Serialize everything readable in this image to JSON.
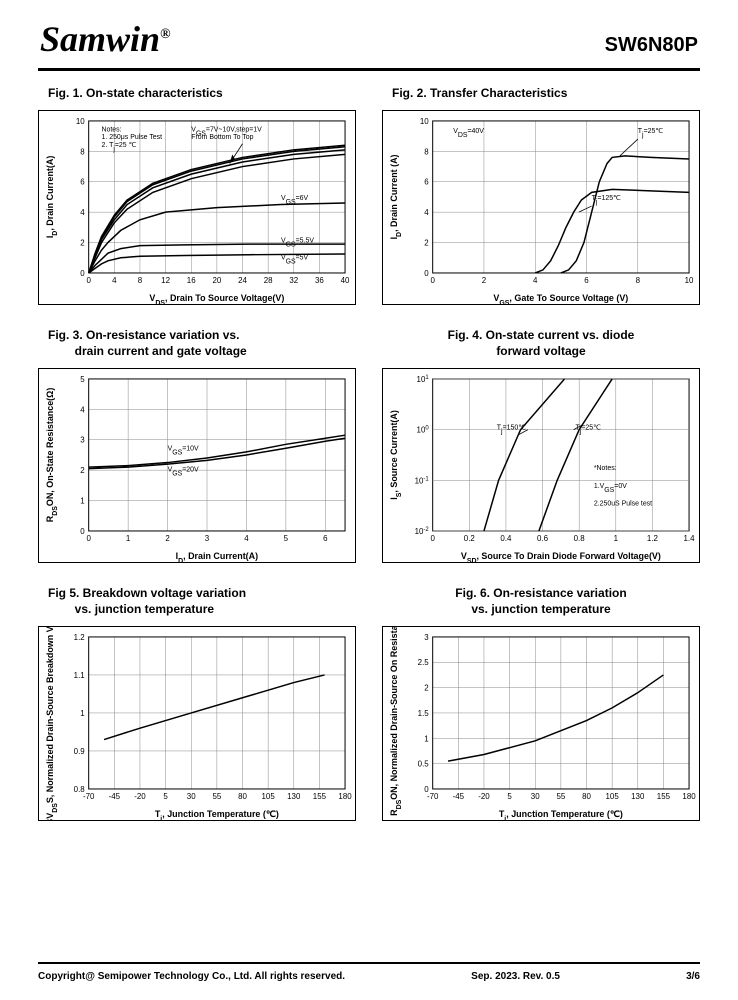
{
  "header": {
    "logo": "Samwin",
    "reg": "®",
    "partno": "SW6N80P"
  },
  "fig1": {
    "title": "Fig. 1. On-state characteristics",
    "xlabel": "V_DS, Drain To Source Voltage(V)",
    "ylabel": "I_D, Drain Current(A)",
    "xlim": [
      0,
      40
    ],
    "xtick": [
      0,
      4,
      8,
      12,
      16,
      20,
      24,
      28,
      32,
      36,
      40
    ],
    "ylim": [
      0,
      10
    ],
    "ytick": [
      0,
      2,
      4,
      6,
      8,
      10
    ],
    "notes": [
      "Notes:",
      "1. 250μs Pulse Test",
      "2. T_j=25 ℃"
    ],
    "topnote": [
      "V_GS=7V~10V,step=1V",
      "From Bottom To Top"
    ],
    "curves": [
      {
        "label": "V_GS=5V",
        "label_x": 30,
        "label_y": 0.9,
        "pts": [
          [
            0,
            0
          ],
          [
            1,
            0.3
          ],
          [
            2,
            0.6
          ],
          [
            3,
            0.8
          ],
          [
            5,
            1.0
          ],
          [
            8,
            1.1
          ],
          [
            15,
            1.15
          ],
          [
            25,
            1.2
          ],
          [
            40,
            1.25
          ]
        ]
      },
      {
        "label": "V_GS=5.5V",
        "label_x": 30,
        "label_y": 2.0,
        "pts": [
          [
            0,
            0
          ],
          [
            1,
            0.5
          ],
          [
            2,
            0.9
          ],
          [
            3,
            1.3
          ],
          [
            5,
            1.6
          ],
          [
            8,
            1.8
          ],
          [
            15,
            1.85
          ],
          [
            25,
            1.9
          ],
          [
            40,
            1.9
          ]
        ]
      },
      {
        "label": "V_GS=6V",
        "label_x": 30,
        "label_y": 4.8,
        "pts": [
          [
            0,
            0
          ],
          [
            1,
            0.8
          ],
          [
            2,
            1.5
          ],
          [
            3,
            2.0
          ],
          [
            5,
            2.8
          ],
          [
            8,
            3.5
          ],
          [
            12,
            4.0
          ],
          [
            20,
            4.3
          ],
          [
            30,
            4.5
          ],
          [
            40,
            4.6
          ]
        ]
      },
      {
        "label": "",
        "pts": [
          [
            0,
            0
          ],
          [
            1,
            1.0
          ],
          [
            2,
            2.0
          ],
          [
            4,
            3.3
          ],
          [
            6,
            4.2
          ],
          [
            10,
            5.3
          ],
          [
            16,
            6.2
          ],
          [
            24,
            7.0
          ],
          [
            32,
            7.5
          ],
          [
            40,
            7.8
          ]
        ]
      },
      {
        "label": "",
        "pts": [
          [
            0,
            0
          ],
          [
            1,
            1.1
          ],
          [
            2,
            2.2
          ],
          [
            4,
            3.5
          ],
          [
            6,
            4.5
          ],
          [
            10,
            5.6
          ],
          [
            16,
            6.5
          ],
          [
            24,
            7.3
          ],
          [
            32,
            7.8
          ],
          [
            40,
            8.1
          ]
        ]
      },
      {
        "label": "",
        "pts": [
          [
            0,
            0
          ],
          [
            1,
            1.2
          ],
          [
            2,
            2.3
          ],
          [
            4,
            3.7
          ],
          [
            6,
            4.7
          ],
          [
            10,
            5.8
          ],
          [
            16,
            6.7
          ],
          [
            24,
            7.5
          ],
          [
            32,
            8.0
          ],
          [
            40,
            8.3
          ]
        ]
      },
      {
        "label": "",
        "pts": [
          [
            0,
            0
          ],
          [
            1,
            1.3
          ],
          [
            2,
            2.4
          ],
          [
            4,
            3.8
          ],
          [
            6,
            4.8
          ],
          [
            10,
            5.9
          ],
          [
            16,
            6.8
          ],
          [
            24,
            7.6
          ],
          [
            32,
            8.1
          ],
          [
            40,
            8.4
          ]
        ]
      }
    ]
  },
  "fig2": {
    "title": "Fig. 2. Transfer Characteristics",
    "xlabel": "V_GS, Gate To Source Voltage (V)",
    "ylabel": "I_D, Drain Current (A)",
    "xlim": [
      0,
      10
    ],
    "xtick": [
      0,
      2,
      4,
      6,
      8,
      10
    ],
    "ylim": [
      0,
      10
    ],
    "ytick": [
      0,
      2,
      4,
      6,
      8,
      10
    ],
    "vds_label": "V_DS=40V",
    "curves": [
      {
        "label": "T_j=25℃",
        "label_x": 8,
        "label_y": 9.2,
        "pts": [
          [
            5.0,
            0
          ],
          [
            5.3,
            0.2
          ],
          [
            5.6,
            0.8
          ],
          [
            5.9,
            2.0
          ],
          [
            6.2,
            4.0
          ],
          [
            6.5,
            6.0
          ],
          [
            6.8,
            7.2
          ],
          [
            7.0,
            7.6
          ],
          [
            7.5,
            7.7
          ],
          [
            8.5,
            7.6
          ],
          [
            10,
            7.5
          ]
        ]
      },
      {
        "label": "T_j=125℃",
        "label_x": 6.2,
        "label_y": 4.8,
        "pts": [
          [
            4.0,
            0
          ],
          [
            4.3,
            0.2
          ],
          [
            4.6,
            0.8
          ],
          [
            4.9,
            1.8
          ],
          [
            5.2,
            3.0
          ],
          [
            5.5,
            4.0
          ],
          [
            5.8,
            4.8
          ],
          [
            6.2,
            5.3
          ],
          [
            7.0,
            5.5
          ],
          [
            8.5,
            5.4
          ],
          [
            10,
            5.3
          ]
        ]
      }
    ]
  },
  "fig3": {
    "title": "Fig. 3. On-resistance variation vs.",
    "subtitle": "drain current and gate voltage",
    "xlabel": "I_D, Drain Current(A)",
    "ylabel": "R_DSON, On-State Resistance(Ω)",
    "xlim": [
      0,
      6.5
    ],
    "xtick": [
      0,
      1,
      2,
      3,
      4,
      5,
      6
    ],
    "ylim": [
      0,
      5
    ],
    "ytick": [
      0,
      1.0,
      2.0,
      3.0,
      4.0,
      5.0
    ],
    "curves": [
      {
        "label": "V_GS=10V",
        "label_x": 2.0,
        "label_y": 2.65,
        "pts": [
          [
            0,
            2.1
          ],
          [
            1,
            2.15
          ],
          [
            2,
            2.25
          ],
          [
            3,
            2.4
          ],
          [
            4,
            2.6
          ],
          [
            5,
            2.85
          ],
          [
            6,
            3.05
          ],
          [
            6.5,
            3.15
          ]
        ]
      },
      {
        "label": "V_GS=20V",
        "label_x": 2.0,
        "label_y": 1.95,
        "pts": [
          [
            0,
            2.05
          ],
          [
            1,
            2.1
          ],
          [
            2,
            2.2
          ],
          [
            3,
            2.32
          ],
          [
            4,
            2.5
          ],
          [
            5,
            2.72
          ],
          [
            6,
            2.95
          ],
          [
            6.5,
            3.05
          ]
        ]
      }
    ]
  },
  "fig4": {
    "title": "Fig. 4. On-state current vs. diode",
    "subtitle": "forward voltage",
    "xlabel": "V_SD, Source To Drain Diode Forward Voltage(V)",
    "ylabel": "I_S, Source Current(A)",
    "xlim": [
      0,
      1.4
    ],
    "xtick": [
      0,
      0.2,
      0.4,
      0.6,
      0.8,
      1.0,
      1.2,
      1.4
    ],
    "ylog": true,
    "ylim": [
      -2,
      1
    ],
    "yticklabels": [
      "10^-2",
      "10^-1",
      "10^0",
      "10^1"
    ],
    "notes": [
      "*Notes:",
      "1.V_GS=0V",
      "2.250uS Pulse test"
    ],
    "curves": [
      {
        "label": "T_j=150℃",
        "label_x": 0.35,
        "label_y": 0.0,
        "pts": [
          [
            0.28,
            -2
          ],
          [
            0.36,
            -1
          ],
          [
            0.48,
            0
          ],
          [
            0.72,
            1
          ]
        ]
      },
      {
        "label": "T_j=25℃",
        "label_x": 0.78,
        "label_y": 0.0,
        "pts": [
          [
            0.58,
            -2
          ],
          [
            0.68,
            -1
          ],
          [
            0.8,
            0
          ],
          [
            0.98,
            1
          ]
        ]
      }
    ]
  },
  "fig5": {
    "title": "Fig 5. Breakdown voltage variation",
    "subtitle": "vs. junction temperature",
    "xlabel": "T_j, Junction Temperature (℃)",
    "ylabel": "BV_DSS, Normalized Drain-Source Breakdown Voltage",
    "xlim": [
      -70,
      180
    ],
    "xtick": [
      -70,
      -45,
      -20,
      5,
      30,
      55,
      80,
      105,
      130,
      155,
      180
    ],
    "ylim": [
      0.8,
      1.2
    ],
    "ytick": [
      0.8,
      0.9,
      1.0,
      1.1,
      1.2
    ],
    "curve": {
      "pts": [
        [
          -55,
          0.93
        ],
        [
          -20,
          0.96
        ],
        [
          30,
          1.0
        ],
        [
          80,
          1.04
        ],
        [
          130,
          1.08
        ],
        [
          160,
          1.1
        ]
      ]
    }
  },
  "fig6": {
    "title": "Fig. 6. On-resistance variation",
    "subtitle": "vs. junction temperature",
    "xlabel": "T_j, Junction Temperature (℃)",
    "ylabel": "R_DSON, Normalized Drain-Source On Resistance",
    "xlim": [
      -70,
      180
    ],
    "xtick": [
      -70,
      -45,
      -20,
      5,
      30,
      55,
      80,
      105,
      130,
      155,
      180
    ],
    "ylim": [
      0,
      3
    ],
    "ytick": [
      0,
      0.5,
      1.0,
      1.5,
      2.0,
      2.5,
      3.0
    ],
    "curve": {
      "pts": [
        [
          -55,
          0.55
        ],
        [
          -20,
          0.68
        ],
        [
          30,
          0.95
        ],
        [
          80,
          1.35
        ],
        [
          105,
          1.6
        ],
        [
          130,
          1.9
        ],
        [
          155,
          2.25
        ]
      ]
    }
  },
  "footer": {
    "left": "Copyright@ Semipower Technology Co., Ltd. All rights reserved.",
    "center": "Sep. 2023. Rev. 0.5",
    "right": "3/6"
  }
}
